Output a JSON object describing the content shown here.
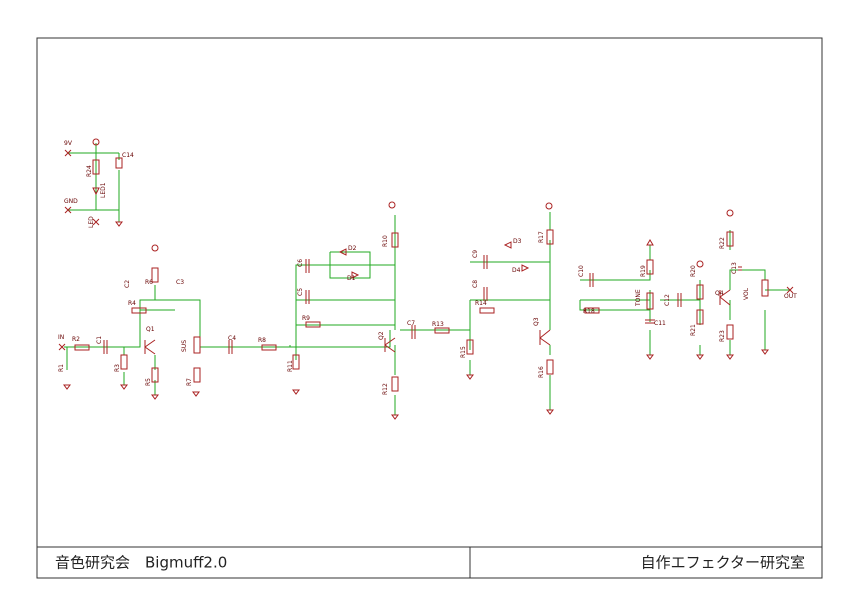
{
  "title_block": {
    "left": "音色研究会　Bigmuff2.0",
    "right": "自作エフェクター研究室"
  },
  "labels": [
    "9V",
    "GND",
    "LED",
    "R24",
    "LED1",
    "C14",
    "IN",
    "R1",
    "R2",
    "C1",
    "R3",
    "C2",
    "R6",
    "C3",
    "R4",
    "Q1",
    "R5",
    "SUS",
    "R7",
    "C4",
    "R8",
    "R11",
    "C6",
    "D2",
    "D1",
    "C5",
    "R9",
    "R10",
    "Q2",
    "R12",
    "C7",
    "R13",
    "R15",
    "C9",
    "D3",
    "D4",
    "R17",
    "C8",
    "R14",
    "Q3",
    "R16",
    "C10",
    "R19",
    "TONE",
    "C12",
    "R18",
    "C11",
    "R20",
    "R21",
    "Q4",
    "R22",
    "C13",
    "VOL",
    "OUT",
    "R23"
  ]
}
